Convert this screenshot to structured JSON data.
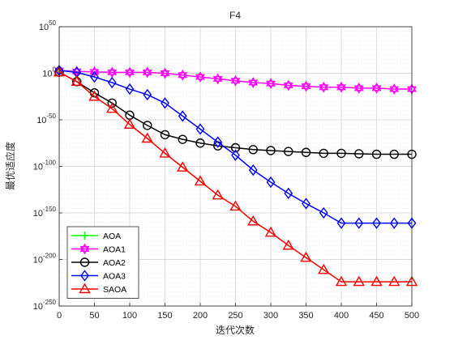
{
  "chart_data": {
    "type": "line",
    "title": "F4",
    "xlabel": "迭代次数",
    "ylabel": "最优适应度",
    "x": [
      0,
      25,
      50,
      75,
      100,
      125,
      150,
      175,
      200,
      225,
      250,
      275,
      300,
      325,
      350,
      375,
      400,
      425,
      450,
      475,
      500
    ],
    "xlim": [
      0,
      500
    ],
    "ylim_exponent": [
      -250,
      50
    ],
    "y_scale": "log",
    "y_base": 10,
    "xticks": [
      0,
      50,
      100,
      150,
      200,
      250,
      300,
      350,
      400,
      450,
      500
    ],
    "yticks_exponent": [
      -250,
      -200,
      -150,
      -100,
      -50,
      0,
      50
    ],
    "grid": true,
    "minor_grid": true,
    "legend_position": "bottom-left",
    "series": [
      {
        "name": "AOA",
        "color": "#00ff00",
        "marker": "plus",
        "log10_values": [
          1.2
        ]
      },
      {
        "name": "AOA1",
        "color": "#ff00ff",
        "marker": "hexagram",
        "log10_values": [
          3,
          2,
          1.5,
          1,
          1,
          1,
          0,
          -2,
          -4,
          -6,
          -8,
          -10,
          -11,
          -13,
          -14,
          -15,
          -15,
          -16,
          -16,
          -17,
          -17
        ]
      },
      {
        "name": "AOA2",
        "color": "#000000",
        "marker": "circle",
        "log10_values": [
          1.2,
          -9,
          -21,
          -32,
          -45,
          -56,
          -66,
          -71,
          -75,
          -78,
          -80,
          -82,
          -83,
          -84,
          -85,
          -86,
          -86,
          -86.5,
          -87,
          -87,
          -87
        ]
      },
      {
        "name": "AOA3",
        "color": "#0000ff",
        "marker": "diamond",
        "log10_values": [
          3,
          1,
          -4,
          -10,
          -17,
          -23,
          -32,
          -46,
          -60,
          -74,
          -88,
          -104,
          -117,
          -129,
          -140,
          -150,
          -161,
          -161,
          -161,
          -161,
          -161
        ]
      },
      {
        "name": "SAOA",
        "color": "#ff0000",
        "marker": "triangle",
        "log10_values": [
          1.2,
          -9,
          -25,
          -38,
          -55,
          -70,
          -86,
          -101,
          -116,
          -131,
          -143,
          -159,
          -171,
          -185,
          -198,
          -211,
          -224,
          -224,
          -224,
          -224,
          -224
        ]
      }
    ]
  }
}
